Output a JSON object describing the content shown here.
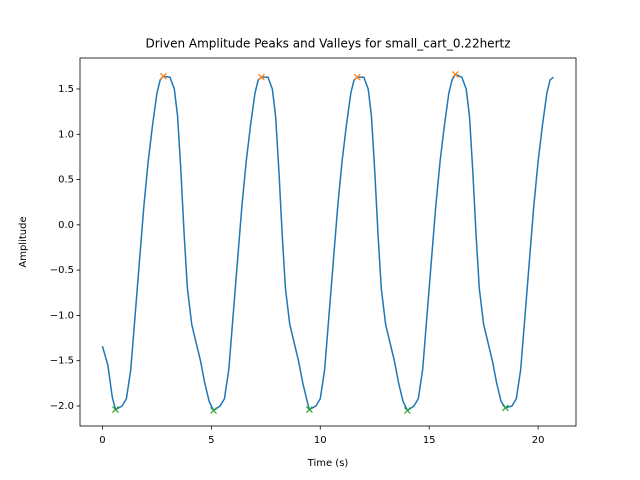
{
  "chart_data": {
    "type": "line",
    "title": "Driven Amplitude Peaks and Valleys for small_cart_0.22hertz",
    "x_label": "Time (s)",
    "y_label": "Amplitude",
    "xlim": [
      -1.03,
      21.74
    ],
    "ylim": [
      -2.221,
      1.842
    ],
    "xticks": [
      0,
      5,
      10,
      15,
      20
    ],
    "yticks": [
      {
        "value": -2.0,
        "label": "−2.0"
      },
      {
        "value": -1.5,
        "label": "−1.5"
      },
      {
        "value": -1.0,
        "label": "−1.0"
      },
      {
        "value": -0.5,
        "label": "−0.5"
      },
      {
        "value": 0.0,
        "label": "0.0"
      },
      {
        "value": 0.5,
        "label": "0.5"
      },
      {
        "value": 1.0,
        "label": "1.0"
      },
      {
        "value": 1.5,
        "label": "1.5"
      }
    ],
    "grid": false,
    "series": [
      {
        "color": "#1f77b4",
        "marker": "none",
        "x": [
          0,
          0.25,
          0.45,
          0.6,
          0.9,
          1.1,
          1.3,
          1.5,
          1.7,
          1.9,
          2.1,
          2.3,
          2.5,
          2.65,
          2.8,
          3.1,
          3.3,
          3.45,
          3.6,
          3.75,
          3.9,
          4.1,
          4.3,
          4.5,
          4.7,
          4.9,
          5.1,
          5.4,
          5.6,
          5.8,
          6.0,
          6.2,
          6.4,
          6.6,
          6.8,
          7.0,
          7.15,
          7.3,
          7.6,
          7.8,
          7.95,
          8.1,
          8.25,
          8.4,
          8.6,
          8.8,
          9.0,
          9.2,
          9.4,
          9.5,
          9.8,
          10.0,
          10.2,
          10.4,
          10.6,
          10.8,
          11.0,
          11.2,
          11.4,
          11.55,
          11.7,
          12.0,
          12.2,
          12.35,
          12.5,
          12.65,
          12.8,
          13.0,
          13.2,
          13.4,
          13.6,
          13.8,
          14.0,
          14.3,
          14.5,
          14.7,
          14.9,
          15.1,
          15.3,
          15.5,
          15.7,
          15.9,
          16.05,
          16.2,
          16.5,
          16.7,
          16.85,
          17.0,
          17.15,
          17.3,
          17.5,
          17.7,
          17.9,
          18.1,
          18.3,
          18.5,
          18.8,
          19.0,
          19.2,
          19.4,
          19.6,
          19.8,
          20.0,
          20.2,
          20.4,
          20.55,
          20.7
        ],
        "values": [
          -1.34,
          -1.55,
          -1.9,
          -2.04,
          -2.0,
          -1.92,
          -1.6,
          -1.0,
          -0.4,
          0.2,
          0.7,
          1.1,
          1.45,
          1.6,
          1.64,
          1.63,
          1.5,
          1.2,
          0.6,
          -0.1,
          -0.7,
          -1.1,
          -1.3,
          -1.5,
          -1.75,
          -1.95,
          -2.05,
          -2.0,
          -1.92,
          -1.6,
          -1.0,
          -0.4,
          0.2,
          0.7,
          1.1,
          1.45,
          1.6,
          1.63,
          1.63,
          1.5,
          1.2,
          0.6,
          -0.1,
          -0.7,
          -1.1,
          -1.3,
          -1.5,
          -1.75,
          -1.95,
          -2.04,
          -2.0,
          -1.92,
          -1.6,
          -1.0,
          -0.4,
          0.2,
          0.7,
          1.1,
          1.45,
          1.6,
          1.63,
          1.63,
          1.5,
          1.2,
          0.6,
          -0.1,
          -0.7,
          -1.1,
          -1.3,
          -1.5,
          -1.75,
          -1.95,
          -2.05,
          -2.0,
          -1.92,
          -1.6,
          -1.0,
          -0.4,
          0.2,
          0.7,
          1.1,
          1.45,
          1.6,
          1.66,
          1.63,
          1.5,
          1.2,
          0.6,
          -0.1,
          -0.7,
          -1.1,
          -1.3,
          -1.5,
          -1.75,
          -1.95,
          -2.02,
          -2.0,
          -1.92,
          -1.6,
          -1.0,
          -0.4,
          0.2,
          0.7,
          1.1,
          1.45,
          1.6,
          1.63
        ]
      },
      {
        "color": "#ff7f0e",
        "marker": "x",
        "x": [
          2.8,
          7.3,
          11.7,
          16.2
        ],
        "values": [
          1.64,
          1.63,
          1.63,
          1.66
        ]
      },
      {
        "color": "#2ca02c",
        "marker": "x",
        "x": [
          0.6,
          5.1,
          9.5,
          14.0,
          18.5
        ],
        "values": [
          -2.04,
          -2.05,
          -2.04,
          -2.05,
          -2.02
        ]
      }
    ]
  }
}
